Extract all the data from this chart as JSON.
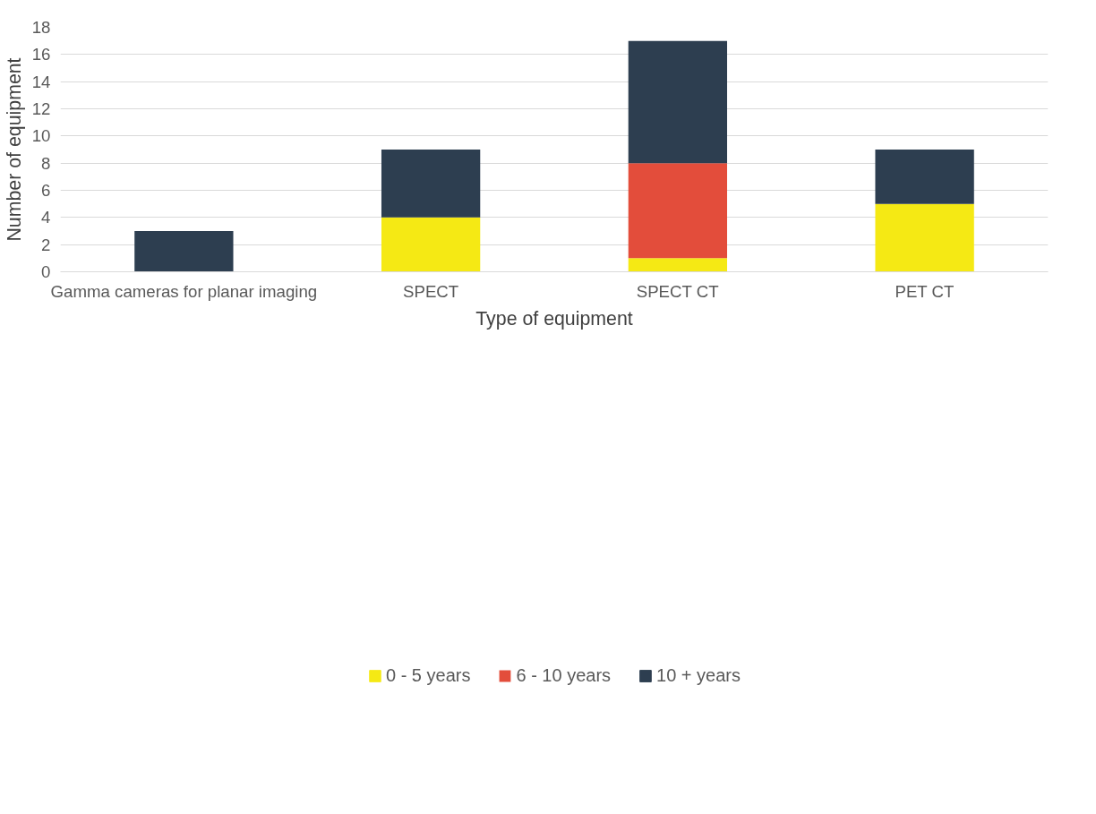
{
  "chart_data": {
    "type": "bar",
    "stacked": true,
    "xlabel": "Type of equipment",
    "ylabel": "Number of equipment",
    "categories": [
      "Gamma cameras for planar imaging",
      "SPECT",
      "SPECT CT",
      "PET CT"
    ],
    "series": [
      {
        "name": "0 - 5 years",
        "color": "#f5e914",
        "values": [
          0,
          4,
          1,
          5
        ]
      },
      {
        "name": "6 - 10 years",
        "color": "#e34d3b",
        "values": [
          0,
          0,
          7,
          0
        ]
      },
      {
        "name": "10 + years",
        "color": "#2d3e50",
        "values": [
          3,
          5,
          9,
          4
        ]
      }
    ],
    "ylim": [
      0,
      18
    ],
    "yticks": [
      0,
      2,
      4,
      6,
      8,
      10,
      12,
      14,
      16,
      18
    ],
    "grid": "y",
    "legend": "bottom"
  }
}
